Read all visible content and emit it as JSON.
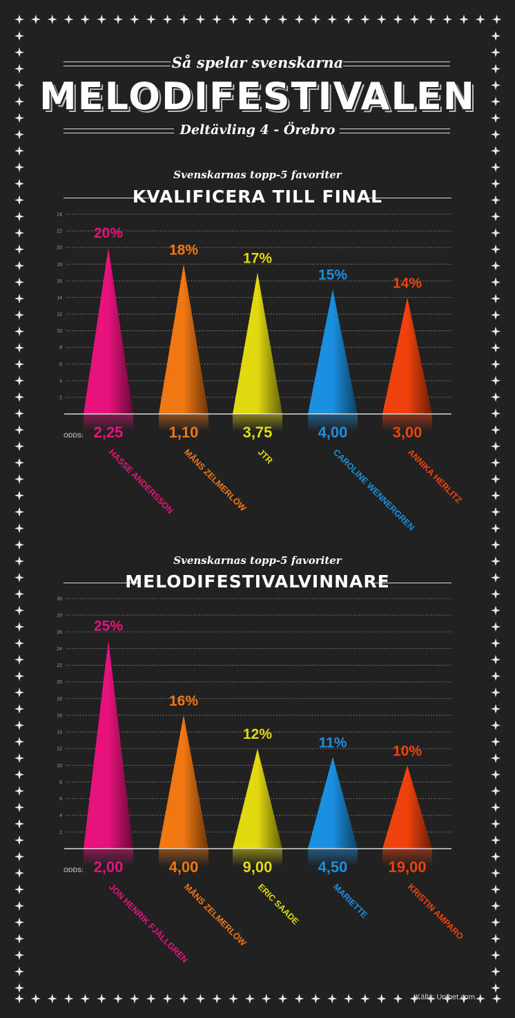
{
  "header": {
    "subtitle": "Så spelar svenskarna",
    "title": "MELODIFESTIVALEN",
    "event": "Deltävling 4 - Örebro"
  },
  "colors": [
    "#e8127c",
    "#f07712",
    "#e3d910",
    "#1b8fe0",
    "#f0420c"
  ],
  "chart_data": [
    {
      "type": "bar",
      "section_label": "Svenskarnas topp-5 favoriter",
      "title": "KVALIFICERA TILL FINAL",
      "ylim": [
        0,
        24
      ],
      "yticks": [
        2,
        4,
        6,
        8,
        10,
        12,
        14,
        16,
        18,
        20,
        22,
        24
      ],
      "odds_label": "ODDS:",
      "categories": [
        "HASSE ANDERSSON",
        "MÅNS ZELMERLÖW",
        "JTR",
        "CAROLINE WENNERGREN",
        "ANNIKA HERLITZ"
      ],
      "values": [
        20,
        18,
        17,
        15,
        14
      ],
      "value_labels": [
        "20%",
        "18%",
        "17%",
        "15%",
        "14%"
      ],
      "odds": [
        "2,25",
        "1,10",
        "3,75",
        "4,00",
        "3,00"
      ]
    },
    {
      "type": "bar",
      "section_label": "Svenskarnas topp-5 favoriter",
      "title": "MELODIFESTIVALVINNARE",
      "ylim": [
        0,
        30
      ],
      "yticks": [
        2,
        4,
        6,
        8,
        10,
        12,
        14,
        16,
        18,
        20,
        22,
        24,
        26,
        28,
        30
      ],
      "odds_label": "ODDS:",
      "categories": [
        "JON HENRIK FJÄLLGREN",
        "MÅNS ZELMERLÖW",
        "ERIC SAADE",
        "MARIETTE",
        "KRISTIN AMPARO"
      ],
      "values": [
        25,
        16,
        12,
        11,
        10
      ],
      "value_labels": [
        "25%",
        "16%",
        "12%",
        "11%",
        "10%"
      ],
      "odds": [
        "2,00",
        "4,00",
        "9,00",
        "4,50",
        "19,00"
      ]
    }
  ],
  "footer": {
    "source": "Källa: Unibet.com"
  }
}
